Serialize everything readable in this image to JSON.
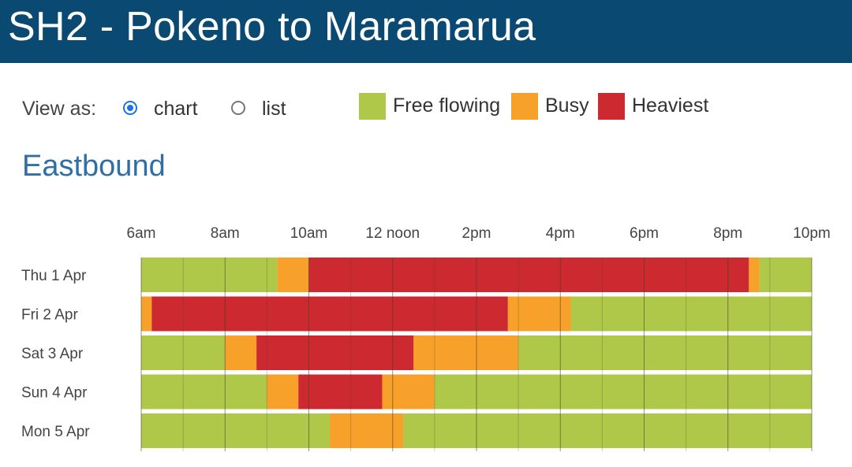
{
  "header": {
    "title": "SH2 - Pokeno to Maramarua"
  },
  "view": {
    "label": "View as:",
    "options": [
      {
        "label": "chart",
        "selected": true
      },
      {
        "label": "list",
        "selected": false
      }
    ]
  },
  "legend": [
    {
      "label": "Free flowing",
      "color": "#b0c84a"
    },
    {
      "label": "Busy",
      "color": "#f7a12b"
    },
    {
      "label": "Heaviest",
      "color": "#cc2a30"
    }
  ],
  "section": {
    "title": "Eastbound"
  },
  "chart_data": {
    "type": "timeline",
    "title": "Eastbound",
    "x_axis": {
      "min_hour": 6,
      "max_hour": 22,
      "tick_hours": [
        6,
        8,
        10,
        12,
        14,
        16,
        18,
        20,
        22
      ],
      "tick_labels": [
        "6am",
        "8am",
        "10am",
        "12 noon",
        "2pm",
        "4pm",
        "6pm",
        "8pm",
        "10pm"
      ]
    },
    "colors": {
      "free": "#b0c84a",
      "busy": "#f7a12b",
      "heaviest": "#cc2a30"
    },
    "rows": [
      {
        "label": "Thu 1 Apr",
        "segments": [
          {
            "start": 6.0,
            "end": 9.25,
            "level": "free"
          },
          {
            "start": 9.25,
            "end": 10.0,
            "level": "busy"
          },
          {
            "start": 10.0,
            "end": 20.5,
            "level": "heaviest"
          },
          {
            "start": 20.5,
            "end": 20.75,
            "level": "busy"
          },
          {
            "start": 20.75,
            "end": 22.0,
            "level": "free"
          }
        ]
      },
      {
        "label": "Fri 2 Apr",
        "segments": [
          {
            "start": 6.0,
            "end": 6.25,
            "level": "busy"
          },
          {
            "start": 6.25,
            "end": 14.75,
            "level": "heaviest"
          },
          {
            "start": 14.75,
            "end": 16.25,
            "level": "busy"
          },
          {
            "start": 16.25,
            "end": 22.0,
            "level": "free"
          }
        ]
      },
      {
        "label": "Sat 3 Apr",
        "segments": [
          {
            "start": 6.0,
            "end": 8.0,
            "level": "free"
          },
          {
            "start": 8.0,
            "end": 8.75,
            "level": "busy"
          },
          {
            "start": 8.75,
            "end": 12.5,
            "level": "heaviest"
          },
          {
            "start": 12.5,
            "end": 15.0,
            "level": "busy"
          },
          {
            "start": 15.0,
            "end": 22.0,
            "level": "free"
          }
        ]
      },
      {
        "label": "Sun 4 Apr",
        "segments": [
          {
            "start": 6.0,
            "end": 9.0,
            "level": "free"
          },
          {
            "start": 9.0,
            "end": 9.75,
            "level": "busy"
          },
          {
            "start": 9.75,
            "end": 11.75,
            "level": "heaviest"
          },
          {
            "start": 11.75,
            "end": 13.0,
            "level": "busy"
          },
          {
            "start": 13.0,
            "end": 22.0,
            "level": "free"
          }
        ]
      },
      {
        "label": "Mon 5 Apr",
        "segments": [
          {
            "start": 6.0,
            "end": 10.5,
            "level": "free"
          },
          {
            "start": 10.5,
            "end": 12.25,
            "level": "busy"
          },
          {
            "start": 12.25,
            "end": 22.0,
            "level": "free"
          }
        ]
      }
    ]
  }
}
